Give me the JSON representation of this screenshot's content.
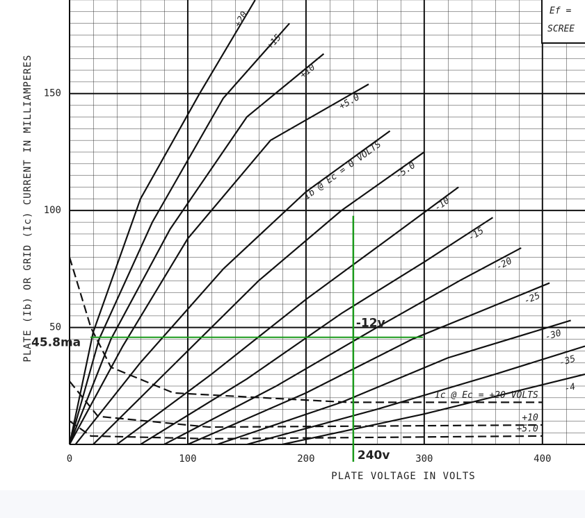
{
  "chart_data": {
    "type": "line",
    "x_label": "PLATE VOLTAGE IN VOLTS",
    "y_label": "PLATE (Ib) OR GRID (Ic) CURRENT IN MILLIAMPERES",
    "corner_text": [
      "Ef =",
      "SCREE"
    ],
    "xlim": [
      0,
      436
    ],
    "ylim": [
      0,
      190
    ],
    "xticks": [
      0,
      100,
      200,
      300,
      400
    ],
    "yticks": [
      50,
      100,
      150
    ],
    "grid": true,
    "series": [
      {
        "name": "+20",
        "color": "#111111",
        "dashed": false,
        "x": [
          0,
          20,
          60,
          110,
          157
        ],
        "values": [
          0,
          48,
          105,
          150,
          190
        ]
      },
      {
        "name": "+15",
        "color": "#111111",
        "dashed": false,
        "x": [
          0,
          25,
          70,
          130,
          186
        ],
        "values": [
          0,
          45,
          95,
          148,
          180
        ]
      },
      {
        "name": "+10",
        "color": "#111111",
        "dashed": false,
        "x": [
          0,
          35,
          85,
          150,
          215
        ],
        "values": [
          0,
          45,
          92,
          140,
          167
        ]
      },
      {
        "name": "+5.0",
        "color": "#111111",
        "dashed": false,
        "x": [
          0,
          45,
          100,
          170,
          253
        ],
        "values": [
          0,
          42,
          88,
          130,
          154
        ]
      },
      {
        "name": "Ib @ Ec = 0 VOLTS",
        "color": "#111111",
        "dashed": false,
        "x": [
          5,
          60,
          130,
          200,
          271
        ],
        "values": [
          0,
          35,
          75,
          108,
          134
        ]
      },
      {
        "name": "-5.0",
        "color": "#111111",
        "dashed": false,
        "x": [
          20,
          90,
          160,
          230,
          300
        ],
        "values": [
          0,
          35,
          70,
          100,
          125
        ]
      },
      {
        "name": "-10",
        "color": "#111111",
        "dashed": false,
        "x": [
          40,
          120,
          200,
          270,
          329
        ],
        "values": [
          0,
          30,
          62,
          88,
          110
        ]
      },
      {
        "name": "-15",
        "color": "#111111",
        "dashed": false,
        "x": [
          60,
          150,
          230,
          300,
          358
        ],
        "values": [
          0,
          28,
          56,
          78,
          97
        ]
      },
      {
        "name": "-20",
        "color": "#111111",
        "dashed": false,
        "x": [
          80,
          175,
          260,
          330,
          382
        ],
        "values": [
          0,
          25,
          50,
          70,
          84
        ]
      },
      {
        "name": "-25",
        "color": "#111111",
        "dashed": false,
        "x": [
          100,
          200,
          290,
          406
        ],
        "values": [
          0,
          22,
          45,
          69
        ]
      },
      {
        "name": "-30",
        "color": "#111111",
        "dashed": false,
        "x": [
          125,
          230,
          320,
          424
        ],
        "values": [
          0,
          18,
          37,
          53
        ]
      },
      {
        "name": "-35",
        "color": "#111111",
        "dashed": false,
        "x": [
          150,
          260,
          360,
          436
        ],
        "values": [
          0,
          15,
          30,
          42
        ]
      },
      {
        "name": "-4",
        "color": "#111111",
        "dashed": false,
        "x": [
          180,
          300,
          436
        ],
        "values": [
          0,
          13,
          30
        ]
      },
      {
        "name": "Ic @ Ec = +20 VOLTS",
        "color": "#111111",
        "dashed": true,
        "x": [
          0,
          18,
          35,
          88,
          235,
          400
        ],
        "values": [
          80,
          50,
          33,
          22,
          18,
          18
        ]
      },
      {
        "name": "+10",
        "color": "#111111",
        "dashed": true,
        "x": [
          0,
          24,
          118,
          400
        ],
        "values": [
          27,
          12,
          7.4,
          8.3
        ]
      },
      {
        "name": "+5.0",
        "color": "#111111",
        "dashed": true,
        "x": [
          0,
          18,
          118,
          400
        ],
        "values": [
          10,
          3.6,
          2.4,
          3.6
        ]
      }
    ],
    "marker": {
      "x": 240,
      "x_label": "240v",
      "y": 45.8,
      "y_label": "45.8ma",
      "color": "#1a9a1a",
      "label_color": "#3311cc"
    },
    "annotation": {
      "text": "-12v",
      "x": 240,
      "y": 45.8,
      "color": "#e01010"
    }
  }
}
